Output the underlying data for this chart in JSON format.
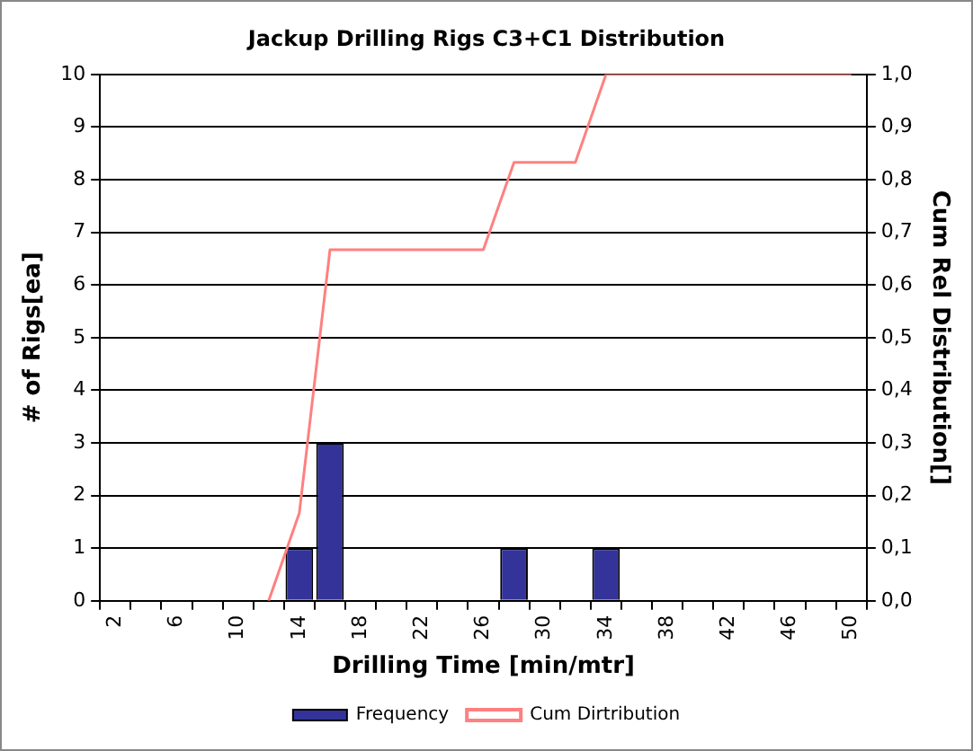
{
  "chart_data": {
    "type": "bar",
    "title": "Jackup Drilling Rigs C3+C1 Distribution",
    "xlabel": "Drilling Time [min/mtr]",
    "ylabel": "# of Rigs[ea]",
    "y2label": "Cum Rel Distribution[]",
    "categories": [
      "2",
      null,
      "6",
      null,
      "10",
      null,
      "14",
      null,
      "18",
      null,
      "22",
      null,
      "26",
      null,
      "30",
      null,
      "34",
      null,
      "38",
      null,
      "42",
      null,
      "46",
      null,
      "50"
    ],
    "series": [
      {
        "name": "Frequency",
        "color": "#333399",
        "values": [
          0,
          0,
          0,
          0,
          0,
          0,
          1,
          3,
          0,
          0,
          0,
          0,
          0,
          1,
          0,
          0,
          1,
          0,
          0,
          0,
          0,
          0,
          0,
          0,
          0
        ]
      },
      {
        "name": "Cum Dirtribution",
        "type": "line",
        "axis": "y2",
        "color": "#ff8080",
        "values": [
          null,
          null,
          null,
          null,
          null,
          0,
          0.167,
          0.667,
          0.667,
          0.667,
          0.667,
          0.667,
          0.667,
          0.833,
          0.833,
          0.833,
          1,
          1,
          1,
          1,
          1,
          1,
          1,
          1,
          1
        ]
      }
    ],
    "ylim": [
      0,
      10
    ],
    "yticks": [
      0,
      1,
      2,
      3,
      4,
      5,
      6,
      7,
      8,
      9,
      10
    ],
    "y2lim": [
      0,
      1
    ],
    "y2ticks": [
      {
        "value": 0,
        "label": "0,0"
      },
      {
        "value": 0.1,
        "label": "0,1"
      },
      {
        "value": 0.2,
        "label": "0,2"
      },
      {
        "value": 0.3,
        "label": "0,3"
      },
      {
        "value": 0.4,
        "label": "0,4"
      },
      {
        "value": 0.5,
        "label": "0,5"
      },
      {
        "value": 0.6,
        "label": "0,6"
      },
      {
        "value": 0.7,
        "label": "0,7"
      },
      {
        "value": 0.8,
        "label": "0,8"
      },
      {
        "value": 0.9,
        "label": "0,9"
      },
      {
        "value": 1,
        "label": "1,0"
      }
    ],
    "grid": "y",
    "legend": "bottom",
    "marker": "none",
    "line_style": "solid"
  }
}
